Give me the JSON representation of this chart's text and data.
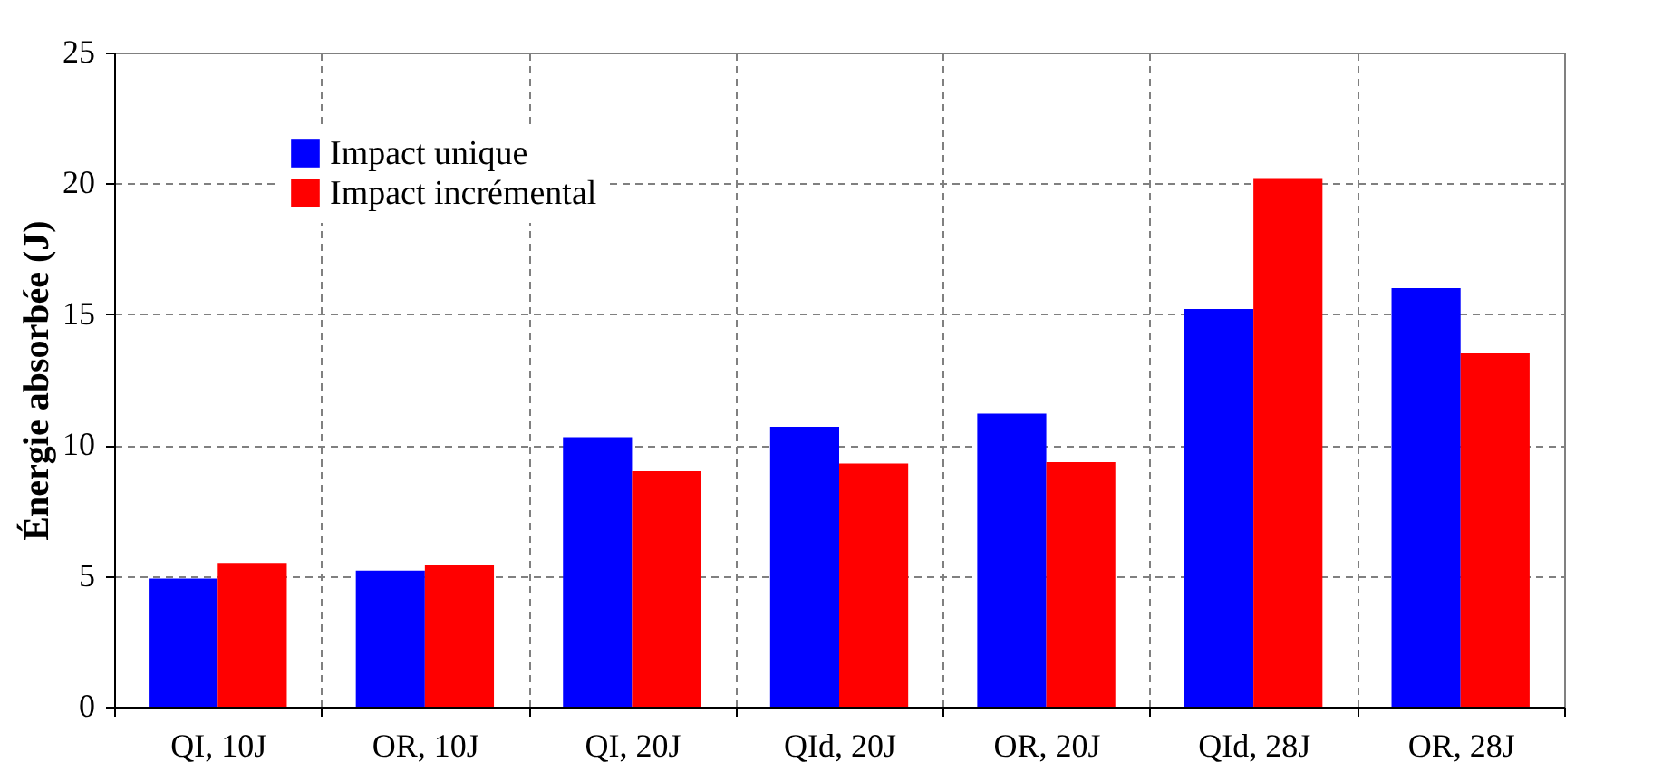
{
  "chart_data": {
    "type": "bar",
    "ylabel": "Énergie absorbée (J)",
    "categories": [
      "QI, 10J",
      "OR, 10J",
      "QI, 20J",
      "QId, 20J",
      "OR, 20J",
      "QId, 28J",
      "OR, 28J"
    ],
    "series": [
      {
        "name": "Impact unique",
        "color": "#0000ff",
        "values": [
          4.9,
          5.2,
          10.3,
          10.7,
          11.2,
          15.2,
          16.0
        ]
      },
      {
        "name": "Impact incrémental",
        "color": "#ff0000",
        "values": [
          5.5,
          5.4,
          9.0,
          9.3,
          9.35,
          20.2,
          13.5
        ]
      }
    ],
    "ylim": [
      0,
      25
    ],
    "yticks": [
      0,
      5,
      10,
      15,
      20,
      25
    ],
    "grid": true,
    "legend": "top left"
  }
}
